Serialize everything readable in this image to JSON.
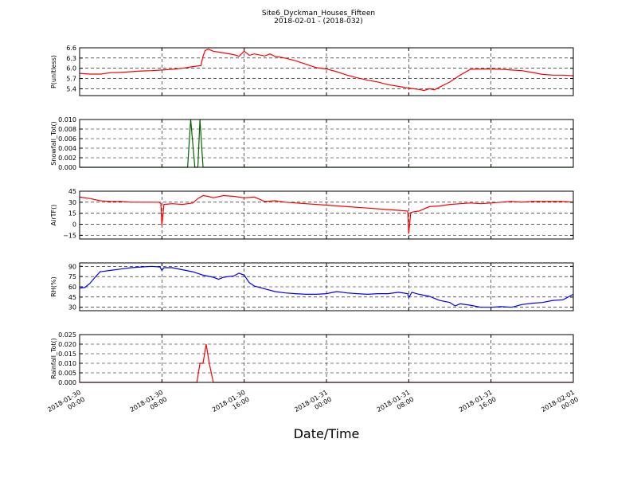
{
  "title_line1": "Site6_Dyckman_Houses_Fifteen",
  "title_line2": "2018-02-01 - (2018-032)",
  "xlabel": "Date/Time",
  "x_ticks": [
    {
      "line1": "2018-01-30",
      "line2": "00:00"
    },
    {
      "line1": "2018-01-30",
      "line2": "08:00"
    },
    {
      "line1": "2018-01-30",
      "line2": "16:00"
    },
    {
      "line1": "2018-01-31",
      "line2": "00:00"
    },
    {
      "line1": "2018-01-31",
      "line2": "08:00"
    },
    {
      "line1": "2018-01-31",
      "line2": "16:00"
    },
    {
      "line1": "2018-02-01",
      "line2": "00:00"
    }
  ],
  "chart_data": [
    {
      "type": "line",
      "ylabel": "P(unitless)",
      "ylim": [
        5.2,
        6.6
      ],
      "yticks": [
        "5.4",
        "5.7",
        "6.0",
        "6.3",
        "6.6"
      ],
      "ytick_values": [
        5.4,
        5.7,
        6.0,
        6.3,
        6.6
      ],
      "grid": true,
      "xlim": [
        "2018-01-30 00:00",
        "2018-02-01 00:00"
      ],
      "color": "#ff0000",
      "series": [
        {
          "x_hours": [
            0,
            1,
            2,
            3,
            4,
            5,
            6,
            7,
            8,
            9,
            10,
            11,
            11.8,
            12,
            12.2,
            12.5,
            13,
            14,
            15,
            15.5,
            16,
            16.5,
            17,
            18,
            18.5,
            19,
            20,
            21,
            22,
            23,
            24,
            25,
            26,
            27,
            28,
            29,
            30,
            31,
            32,
            33,
            33.5,
            34,
            34.5,
            35,
            36,
            37,
            38,
            39,
            40,
            41,
            42,
            43,
            44,
            45,
            46,
            47,
            48
          ],
          "values": [
            5.85,
            5.83,
            5.83,
            5.87,
            5.88,
            5.9,
            5.92,
            5.93,
            5.95,
            5.97,
            6.0,
            6.05,
            6.08,
            6.35,
            6.52,
            6.56,
            6.5,
            6.45,
            6.4,
            6.35,
            6.5,
            6.38,
            6.42,
            6.36,
            6.42,
            6.35,
            6.3,
            6.22,
            6.12,
            6.02,
            5.98,
            5.9,
            5.8,
            5.72,
            5.65,
            5.6,
            5.52,
            5.47,
            5.42,
            5.38,
            5.35,
            5.4,
            5.37,
            5.45,
            5.6,
            5.8,
            5.97,
            5.98,
            5.98,
            5.97,
            5.95,
            5.93,
            5.88,
            5.82,
            5.8,
            5.8,
            5.78
          ]
        }
      ]
    },
    {
      "type": "line",
      "ylabel": "Snowfall_Tot()",
      "ylim": [
        0.0,
        0.01
      ],
      "yticks": [
        "0.000",
        "0.002",
        "0.004",
        "0.006",
        "0.008",
        "0.010"
      ],
      "ytick_values": [
        0.0,
        0.002,
        0.004,
        0.006,
        0.008,
        0.01
      ],
      "grid": true,
      "xlim": [
        "2018-01-30 00:00",
        "2018-02-01 00:00"
      ],
      "color": "#006400",
      "series": [
        {
          "x_hours": [
            0,
            10.5,
            10.8,
            11.2,
            11.5,
            11.7,
            12.0,
            12.3,
            48
          ],
          "values": [
            0,
            0,
            0.01,
            0,
            0,
            0.01,
            0,
            0,
            0
          ]
        }
      ]
    },
    {
      "type": "line",
      "ylabel": "AirTF()",
      "ylim": [
        -20,
        45
      ],
      "yticks": [
        "−15",
        "0",
        "15",
        "30",
        "45"
      ],
      "ytick_values": [
        -15,
        0,
        15,
        30,
        45
      ],
      "grid": true,
      "xlim": [
        "2018-01-30 00:00",
        "2018-02-01 00:00"
      ],
      "color": "#ff0000",
      "series": [
        {
          "x_hours": [
            0,
            1,
            2,
            3,
            4,
            5,
            6,
            7,
            7.7,
            7.9,
            8.0,
            8.2,
            9,
            10,
            11,
            11.5,
            12,
            12.5,
            13,
            14,
            15,
            16,
            17,
            18,
            19,
            20,
            22,
            24,
            26,
            28,
            30,
            31,
            31.9,
            32.0,
            32.2,
            32.5,
            33,
            34,
            35,
            36,
            37,
            38,
            39,
            40,
            41,
            42,
            43,
            44,
            45,
            46,
            47,
            48
          ],
          "values": [
            37,
            35,
            32,
            31,
            31,
            30,
            30,
            30,
            30,
            28,
            -2,
            27,
            28,
            27,
            29,
            35,
            39,
            38,
            36,
            39,
            38,
            36,
            37,
            31,
            32,
            30,
            28,
            26,
            24,
            22,
            20,
            19,
            18,
            -13,
            16,
            17,
            18,
            24,
            25,
            27,
            28,
            29,
            28,
            29,
            30,
            31,
            30,
            31,
            31,
            31,
            31,
            30
          ]
        }
      ]
    },
    {
      "type": "line",
      "ylabel": "RH(%)",
      "ylim": [
        25,
        95
      ],
      "yticks": [
        "30",
        "45",
        "60",
        "75",
        "90"
      ],
      "ytick_values": [
        30,
        45,
        60,
        75,
        90
      ],
      "grid": true,
      "xlim": [
        "2018-01-30 00:00",
        "2018-02-01 00:00"
      ],
      "color": "#0000ff",
      "series": [
        {
          "x_hours": [
            0,
            0.5,
            1,
            1.5,
            2,
            3,
            4,
            5,
            6,
            7,
            7.8,
            8,
            8.2,
            9,
            10,
            11,
            12,
            13,
            13.5,
            14,
            15,
            15.5,
            16,
            16.5,
            17,
            18,
            19,
            20,
            21,
            22,
            23,
            24,
            25,
            26,
            27,
            28,
            29,
            30,
            31,
            31.9,
            32,
            32.3,
            33,
            34,
            35,
            36,
            36.5,
            37,
            38,
            39,
            40,
            41,
            42,
            43,
            44,
            45,
            46,
            47,
            48
          ],
          "values": [
            58,
            59,
            65,
            74,
            82,
            84,
            86,
            88,
            89,
            90,
            89,
            84,
            88,
            88,
            85,
            82,
            77,
            74,
            71,
            74,
            76,
            80,
            77,
            66,
            61,
            57,
            53,
            51,
            50,
            49,
            49,
            50,
            53,
            51,
            50,
            49,
            50,
            50,
            52,
            50,
            44,
            52,
            49,
            46,
            40,
            37,
            32,
            35,
            33,
            30,
            30,
            31,
            30,
            34,
            36,
            37,
            40,
            41,
            49
          ]
        }
      ]
    },
    {
      "type": "line",
      "ylabel": "Rainfall_Tot()",
      "ylim": [
        0.0,
        0.025
      ],
      "yticks": [
        "0.000",
        "0.005",
        "0.010",
        "0.015",
        "0.020",
        "0.025"
      ],
      "ytick_values": [
        0.0,
        0.005,
        0.01,
        0.015,
        0.02,
        0.025
      ],
      "grid": true,
      "xlim": [
        "2018-01-30 00:00",
        "2018-02-01 00:00"
      ],
      "color": "#ff0000",
      "series": [
        {
          "x_hours": [
            0,
            11.4,
            11.7,
            12.0,
            12.3,
            12.6,
            13.0,
            48
          ],
          "values": [
            0,
            0,
            0.01,
            0.01,
            0.02,
            0.01,
            0,
            0
          ]
        }
      ]
    }
  ]
}
